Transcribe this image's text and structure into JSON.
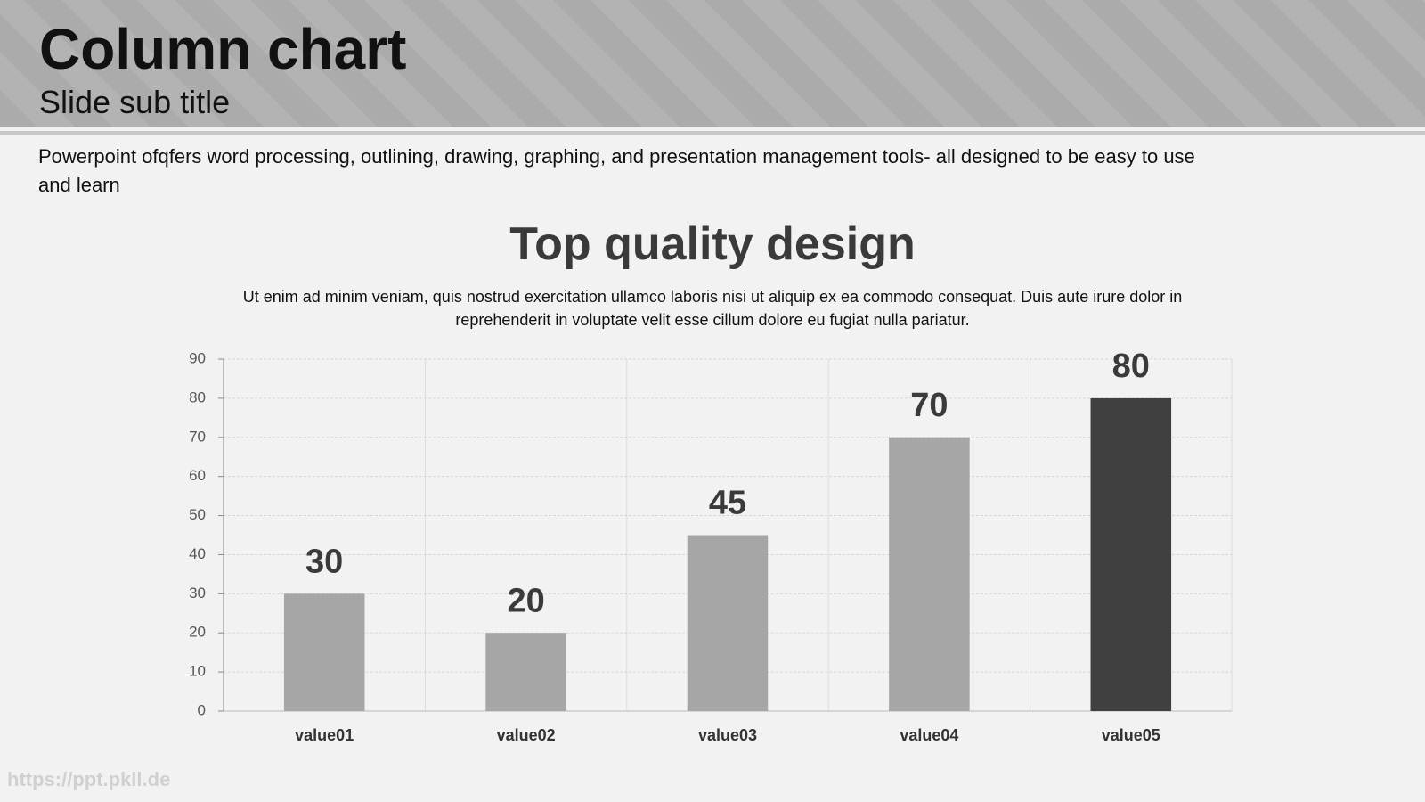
{
  "header": {
    "title": "Column chart",
    "subtitle": "Slide sub title"
  },
  "description": "Powerpoint ofqfers word processing, outlining, drawing, graphing, and presentation management tools- all designed to be easy to use and learn",
  "chart_data": {
    "type": "bar",
    "title": "Top quality design",
    "subtitle": "Ut enim ad minim veniam, quis nostrud exercitation ullamco laboris nisi ut aliquip ex ea commodo consequat. Duis aute irure dolor in reprehenderit in voluptate velit esse cillum dolore eu fugiat nulla pariatur.",
    "categories": [
      "value01",
      "value02",
      "value03",
      "value04",
      "value05"
    ],
    "values": [
      30,
      20,
      45,
      70,
      80
    ],
    "colors": [
      "#a6a6a6",
      "#a6a6a6",
      "#a6a6a6",
      "#a6a6a6",
      "#404040"
    ],
    "ylim": [
      0,
      90
    ],
    "yticks": [
      0,
      10,
      20,
      30,
      40,
      50,
      60,
      70,
      80,
      90
    ],
    "grid": true
  },
  "watermark": "https://ppt.pkll.de"
}
